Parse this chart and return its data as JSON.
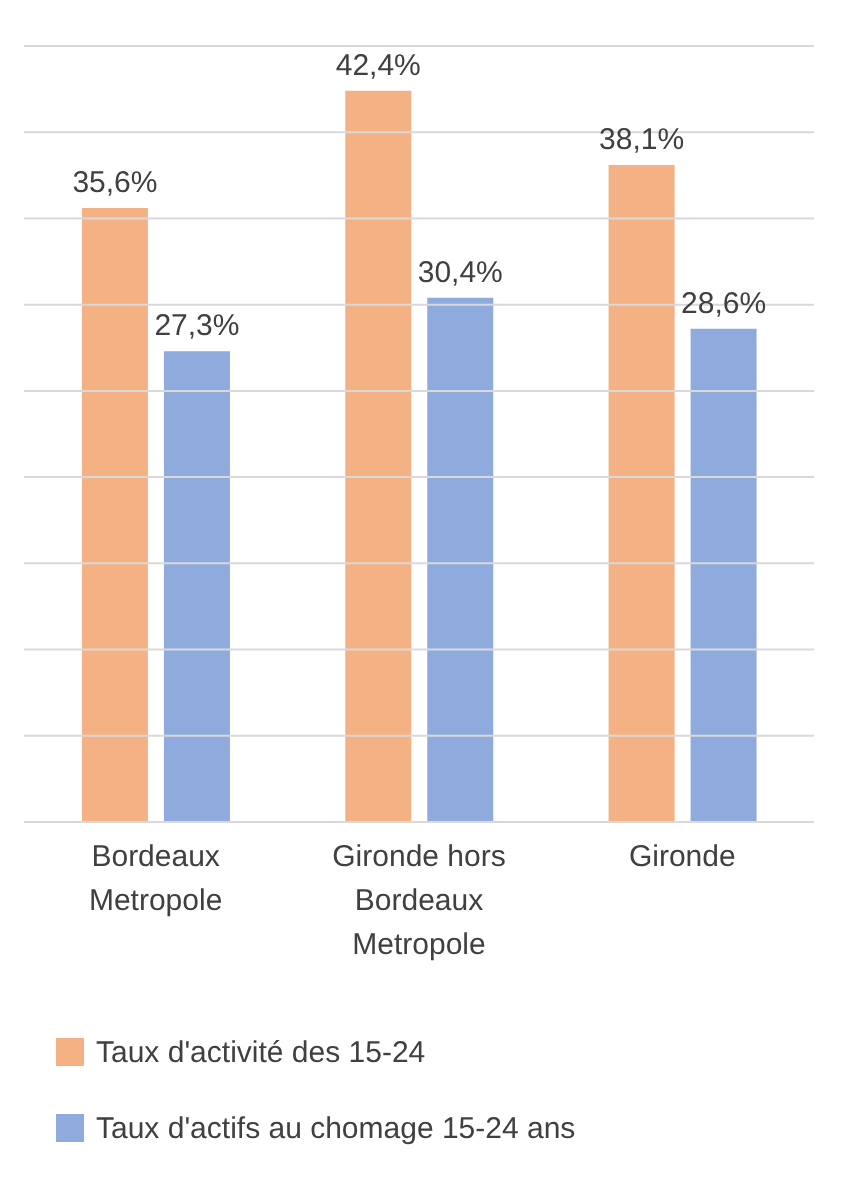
{
  "chart_data": {
    "type": "bar",
    "categories": [
      "Bordeaux Metropole",
      "Gironde hors Bordeaux Metropole",
      "Gironde"
    ],
    "series": [
      {
        "name": "Taux d'activité des 15-24",
        "color": "#f4b183",
        "values": [
          35.6,
          42.4,
          38.1
        ],
        "value_labels": [
          "35,6%",
          "42,4%",
          "38,1%"
        ]
      },
      {
        "name": "Taux d'actifs au chomage 15-24 ans",
        "color": "#8faadc",
        "values": [
          27.3,
          30.4,
          28.6
        ],
        "value_labels": [
          "27,3%",
          "30,4%",
          "28,6%"
        ]
      }
    ],
    "ylim": [
      0,
      45
    ],
    "yticks": [
      {
        "value": 0,
        "label": null
      },
      {
        "value": 5,
        "label": null
      },
      {
        "value": 10,
        "label": null
      },
      {
        "value": 15,
        "label": null
      },
      {
        "value": 20,
        "label": null
      },
      {
        "value": 25,
        "label": null
      },
      {
        "value": 30,
        "label": null
      },
      {
        "value": 35,
        "label": null
      },
      {
        "value": 40,
        "label": null
      },
      {
        "value": 45,
        "label": null
      }
    ],
    "grid": "y",
    "legend": "bottom",
    "tick_labels": "x"
  }
}
